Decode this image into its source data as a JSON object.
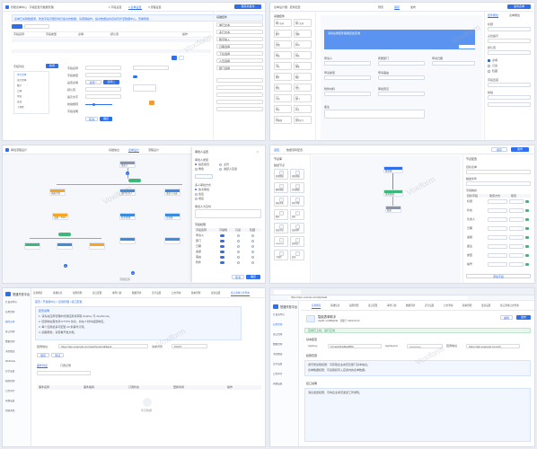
{
  "watermark": "Voxiform",
  "panel1": {
    "title": "智能表单中心 · 字段配置与数据管理",
    "tabs": [
      "1 字段设置",
      "2 表单设置",
      "3 流程设置"
    ],
    "save_button": "保存并发布",
    "notice": "表单已关联数据源，修改字段可能影响已提交的数据，请谨慎操作。提交数据后将自动同步至数据中心。查看帮助",
    "table_headers": [
      "字段名称",
      "字段类型",
      "必填",
      "默认值",
      "操作"
    ],
    "left_list_title": "字段列表",
    "left_list_button": "新增",
    "left_list_items": [
      "单行文本",
      "多行文本",
      "数字",
      "日期",
      "单选",
      "多选",
      "下拉框",
      "附件"
    ],
    "form_labels": [
      "字段名称",
      "字段类型",
      "是否必填",
      "默认值",
      "提示文字",
      "校验规则",
      "字段说明"
    ],
    "option_labels": [
      "选项一",
      "选项二"
    ],
    "confirm_button": "确定",
    "cancel_button": "取消",
    "right_items": [
      "基础控件",
      "单行文本",
      "多行文本",
      "数字输入",
      "日期选择",
      "下拉选择",
      "人员选择",
      "部门选择"
    ]
  },
  "panel2": {
    "title": "表单设计器 · 控件配置",
    "toolbar": [
      "预览",
      "保存",
      "发布"
    ],
    "publish_button": "发布表单",
    "left_groups": [
      "基础控件",
      "高级控件",
      "布局控件"
    ],
    "controls": [
      "单行文本",
      "多行文本",
      "数字",
      "金额",
      "日期",
      "时间",
      "单选",
      "多选",
      "下拉",
      "级联",
      "附件",
      "图片",
      "签名",
      "定位",
      "人员",
      "部门",
      "评分",
      "开关",
      "分隔线",
      "说明文字"
    ],
    "canvas_banner": "请将左侧控件拖拽至此区域",
    "field_labels": [
      "申请人",
      "所属部门",
      "申请日期",
      "申请类型",
      "申请事由",
      "附件材料",
      "审批意见",
      "备注"
    ],
    "right_title": "控件属性",
    "right_tabs": [
      "控件属性",
      "表单属性"
    ],
    "right_labels": [
      "标题",
      "占位提示",
      "默认值",
      "必填",
      "只读",
      "隐藏",
      "字段宽度",
      "校验"
    ]
  },
  "panel3": {
    "title": "审批流程设计",
    "tabs": [
      "基础信息",
      "表单设计",
      "流程设计"
    ],
    "start_node": "发起人",
    "nodes": [
      {
        "title": "审批人",
        "text": "直属主管"
      },
      {
        "title": "审批人",
        "text": "部门负责人"
      },
      {
        "title": "抄送人",
        "text": "发起人自选"
      },
      {
        "title": "条件分支",
        "text": "金额 > 5000"
      },
      {
        "title": "审批人",
        "text": "财务经理"
      },
      {
        "title": "审批人",
        "text": "总经理"
      }
    ],
    "end_label": "流程结束",
    "side_title": "审批人设置",
    "side_labels": [
      "审批人类型",
      "指定成员",
      "主管",
      "角色",
      "发起人自选",
      "多人审批方式",
      "依次审批",
      "会签",
      "或签",
      "审批人为空时",
      "字段权限"
    ],
    "perm_headers": [
      "字段名称",
      "可编辑",
      "只读",
      "隐藏"
    ],
    "perm_rows": [
      "申请人",
      "部门",
      "日期",
      "金额",
      "事由",
      "附件"
    ],
    "confirm_button": "确定",
    "cancel_button": "取消"
  },
  "panel4": {
    "title": "数据流转配置",
    "back": "返回",
    "save_button": "保存",
    "publish_button": "发布",
    "left_title": "节点库",
    "left_groups": [
      "触发节点",
      "数据节点",
      "逻辑节点",
      "通知节点"
    ],
    "node_items": [
      "新增数据",
      "更新数据",
      "删除数据",
      "查询数据",
      "获取单条",
      "条件判断",
      "循环",
      "延时",
      "发送消息",
      "发送邮件",
      "Webhook",
      "调用接口",
      "子流程",
      "结束"
    ],
    "canvas_nodes": [
      "触发器",
      "更新数据",
      "结束"
    ],
    "right_title": "节点配置",
    "right_labels": [
      "目标表单",
      "触发条件",
      "字段映射"
    ],
    "map_headers": [
      "目标字段",
      "取值方式",
      "取值"
    ],
    "map_rows": [
      "标题",
      "状态",
      "负责人",
      "日期",
      "金额",
      "备注",
      "类型",
      "编号"
    ],
    "add_button": "添加字段"
  },
  "panel5": {
    "brand": "慧通开放平台",
    "sidebar": [
      "开发者中心",
      "应用管理",
      "我的应用",
      "接口管理",
      "数据管理",
      "消息推送",
      "Webhook",
      "安全设置",
      "权限管理",
      "日志审计",
      "系统设置",
      "帮助文档"
    ],
    "tabs": [
      "应用概览",
      "基础信息",
      "权限管理",
      "接口配置",
      "事件订阅",
      "数据同步",
      "安全设置",
      "日志查询",
      "版本管理",
      "更多设置",
      "接口调用日志查询"
    ],
    "breadcrumb": "首页 / 开发者中心 / 应用管理 / 接口配置",
    "notice_title": "配置说明",
    "notice_lines": [
      "1. 请先在应用管理中创建应用并获取 AppKey 与 AppSecret。",
      "2. 回调地址需支持 HTTPS 协议，并在 5 秒内返回响应。",
      "3. 每个应用最多可配置 20 条事件订阅。",
      "4. 如需帮助，请查看开发文档。"
    ],
    "url_label": "回调地址",
    "url_value": "https://api.example.com/webhook/callback",
    "method_label": "请求方式",
    "method_value": "POST",
    "save_button": "保存",
    "test_button": "测试",
    "sub_tabs": [
      "事件列表",
      "订阅记录"
    ],
    "table_headers": [
      "事件名称",
      "事件编码",
      "订阅状态",
      "更新时间",
      "操作"
    ],
    "empty_text": "暂无数据"
  },
  "panel6": {
    "brand": "慧通开放平台",
    "url": "https://open.example.com/app/detail",
    "sidebar": [
      "开发者中心",
      "应用管理",
      "接口管理",
      "数据管理",
      "消息推送",
      "安全设置",
      "日志审计",
      "系统设置"
    ],
    "tabs": [
      "应用概览",
      "基础信息",
      "权限管理",
      "接口配置",
      "事件订阅",
      "数据同步",
      "安全设置",
      "日志查询",
      "版本管理",
      "更多设置",
      "接口调用日志查询"
    ],
    "app_name": "智能表单助手",
    "app_desc": "AppID: wx3f8a2c91 · 创建于 2024-03-12",
    "status_text": "应用已上线，运行正常",
    "section1": "基本配置",
    "fields": [
      {
        "label": "AppKey",
        "value": "b7c2e9f14d6a3850"
      },
      {
        "label": "AppSecret",
        "value": "••••••••••••"
      },
      {
        "label": "回调地址",
        "value": "https://api.example.com/cb"
      }
    ],
    "section2": "权限范围",
    "section3": "接口说明",
    "info_lines": [
      "通讯录读取权限：可获取企业成员及部门基本信息。",
      "表单数据权限：可读取和写入应用内的表单数据。",
      "消息发送权限：可向企业成员发送工作通知。"
    ],
    "top_buttons": [
      "编辑",
      "发布"
    ]
  }
}
